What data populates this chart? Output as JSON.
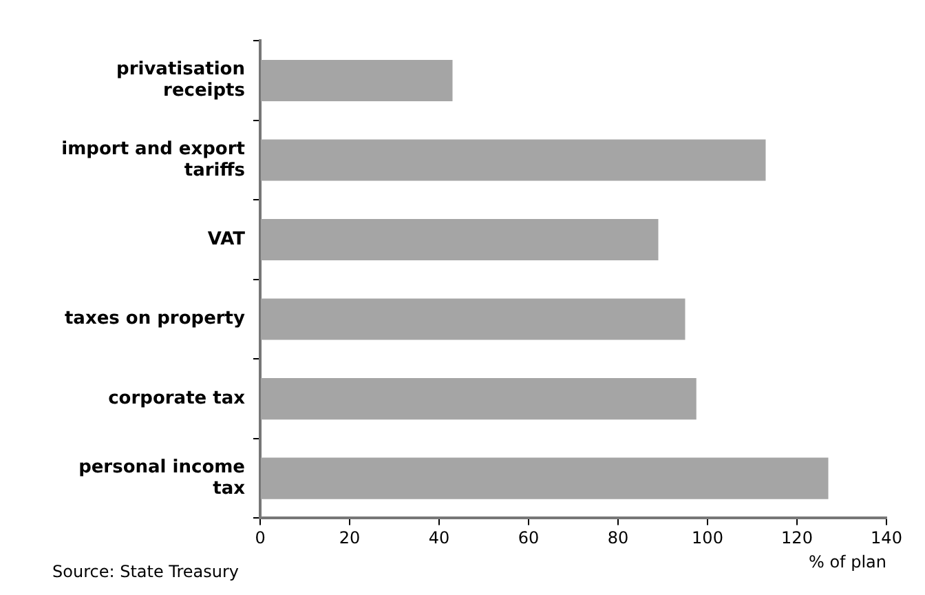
{
  "chart_data": {
    "type": "bar",
    "orientation": "horizontal",
    "categories": [
      "privatisation receipts",
      "import and export tariffs",
      "VAT",
      "taxes on property",
      "corporate tax",
      "personal income tax"
    ],
    "values": [
      43,
      113,
      89,
      95,
      97.5,
      127
    ],
    "color": "#a5a5a5",
    "xlim": [
      0,
      140
    ],
    "xticks": [
      0,
      20,
      40,
      60,
      80,
      100,
      120,
      140
    ],
    "xlabel": "% of plan",
    "annotations": [
      "Source: State Treasury"
    ]
  }
}
